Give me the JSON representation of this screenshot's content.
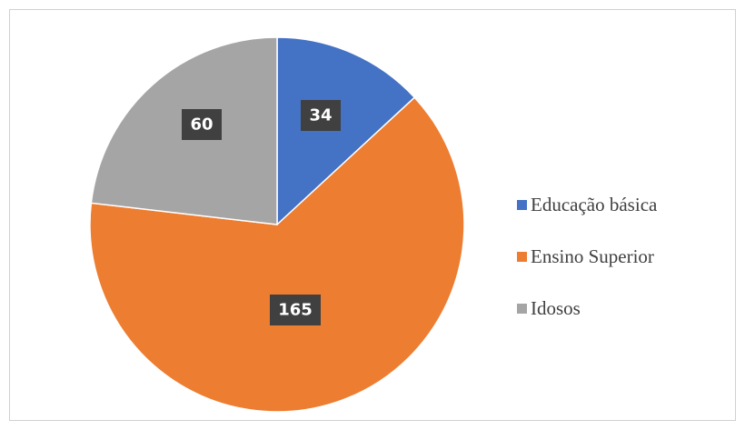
{
  "chart_data": {
    "type": "pie",
    "title": "",
    "categories": [
      "Educação básica",
      "Ensino Superior",
      "Idosos"
    ],
    "values": [
      34,
      165,
      60
    ],
    "value_labels": [
      "34",
      "165",
      "60"
    ],
    "colors": [
      "#4472c4",
      "#ed7d31",
      "#a5a5a5"
    ],
    "start_angle_deg": 0,
    "direction": "clockwise",
    "legend_position": "right"
  }
}
